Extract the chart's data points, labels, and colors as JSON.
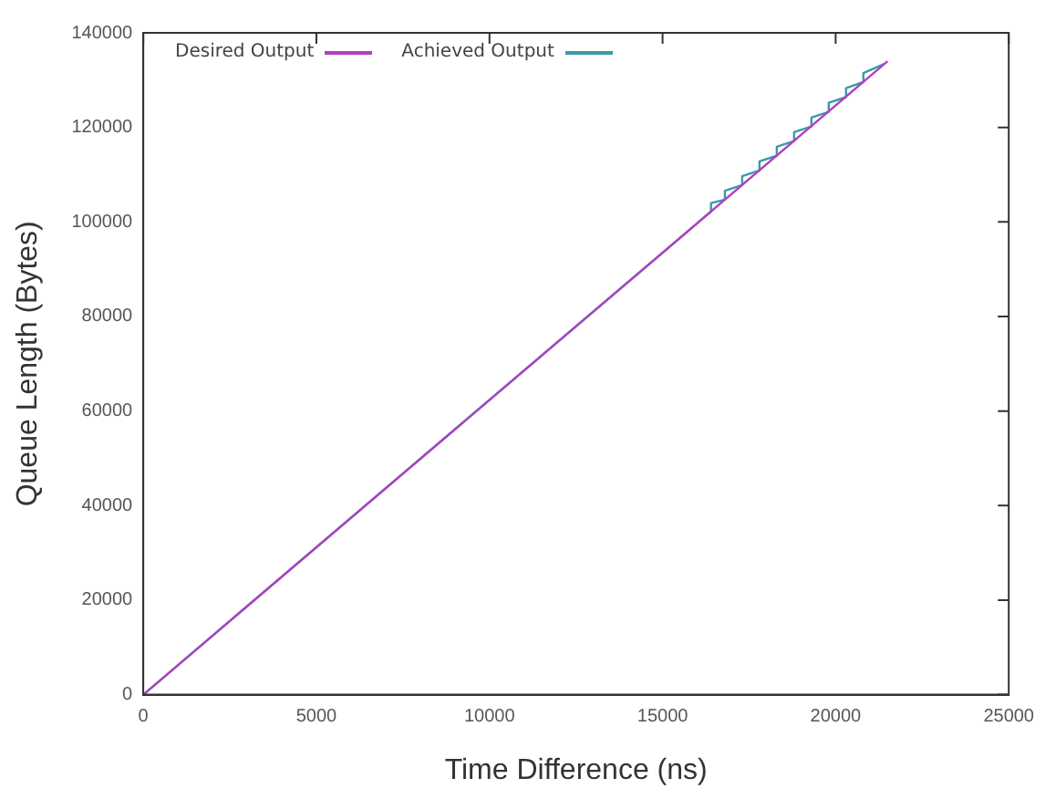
{
  "chart_data": {
    "type": "line",
    "xlabel": "Time Difference (ns)",
    "ylabel": "Queue Length (Bytes)",
    "xlim": [
      0,
      25000
    ],
    "xticks": [
      0,
      5000,
      10000,
      15000,
      20000,
      25000
    ],
    "ylim": [
      0,
      140000
    ],
    "yticks": [
      0,
      20000,
      40000,
      60000,
      80000,
      100000,
      120000,
      140000
    ],
    "grid": false,
    "legend": "top left",
    "marker": "none",
    "line_style": "solid",
    "series": [
      {
        "name": "Desired Output",
        "color": "#b040c0",
        "x": [
          0,
          21500
        ],
        "values": [
          0,
          134000
        ]
      },
      {
        "name": "Achieved Output",
        "color": "#3a9aa8",
        "x": [
          0,
          8000,
          16400,
          16400,
          16800,
          16800,
          17300,
          17300,
          17800,
          17800,
          18300,
          18300,
          18800,
          18800,
          19300,
          19300,
          19800,
          19800,
          20300,
          20300,
          20800,
          20800,
          21400
        ],
        "values": [
          0,
          49900,
          102200,
          104000,
          104700,
          106600,
          107800,
          109700,
          110900,
          112800,
          114000,
          115900,
          117100,
          119000,
          120200,
          122100,
          123300,
          125200,
          126400,
          128300,
          129600,
          131500,
          133400
        ]
      }
    ]
  }
}
